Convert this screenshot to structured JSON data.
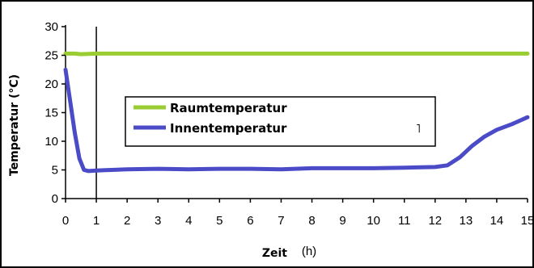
{
  "chart_data": {
    "type": "line",
    "title": "",
    "xlabel": "Zeit",
    "xunit": "(h)",
    "ylabel": "Temperatur (°C)",
    "xlim": [
      0,
      15
    ],
    "ylim": [
      0,
      30
    ],
    "x_ticks": [
      0,
      1,
      2,
      3,
      4,
      5,
      6,
      7,
      8,
      9,
      10,
      11,
      12,
      13,
      14,
      15
    ],
    "y_ticks": [
      0,
      5,
      10,
      15,
      20,
      25,
      30
    ],
    "grid": "vertical-line-at-x=1",
    "legend_position": "center-left",
    "stray_mark": "˥",
    "series": [
      {
        "name": "Raumtemperatur",
        "color": "#9acd32",
        "x": [
          0,
          0.3,
          0.5,
          1,
          2,
          3,
          4,
          5,
          6,
          7,
          8,
          9,
          10,
          11,
          12,
          13,
          14,
          15
        ],
        "y": [
          25.3,
          25.3,
          25.2,
          25.3,
          25.3,
          25.3,
          25.3,
          25.3,
          25.3,
          25.3,
          25.3,
          25.3,
          25.3,
          25.3,
          25.3,
          25.3,
          25.3,
          25.3
        ]
      },
      {
        "name": "Innentemperatur",
        "color": "#4b4bc8",
        "x": [
          0,
          0.15,
          0.3,
          0.45,
          0.6,
          0.75,
          1,
          1.5,
          2,
          3,
          4,
          5,
          6,
          7,
          8,
          9,
          10,
          11,
          12,
          12.4,
          12.8,
          13.2,
          13.6,
          14,
          14.5,
          15
        ],
        "y": [
          22.5,
          17,
          11.5,
          7,
          5,
          4.8,
          4.9,
          5,
          5.1,
          5.2,
          5.1,
          5.2,
          5.2,
          5.1,
          5.3,
          5.3,
          5.3,
          5.4,
          5.5,
          5.8,
          7.2,
          9.2,
          10.8,
          12.0,
          13.0,
          14.2
        ]
      }
    ]
  }
}
